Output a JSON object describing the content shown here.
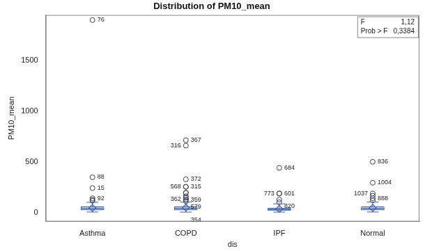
{
  "chart_data": {
    "type": "boxplot",
    "title": "Distribution of PM10_mean",
    "x_label": "dis",
    "y_label": "PM10_mean",
    "categories": [
      "Asthma",
      "COPD",
      "IPF",
      "Normal"
    ],
    "color": "#b4c9e8",
    "marker": "circle",
    "grid": false,
    "legend": false,
    "ylim": [
      -90,
      1950
    ],
    "yticks": [
      0,
      500,
      1000,
      1500
    ],
    "stats": [
      [
        "F",
        "1,12"
      ],
      [
        "Prob > F",
        "0,3384"
      ]
    ],
    "boxes": [
      {
        "min": 4,
        "q1": 20,
        "median": 35,
        "q3": 58,
        "max": 100,
        "mean": 45,
        "outliers": [
          {
            "value": 1900,
            "label": "76"
          },
          {
            "value": 347,
            "label": "88"
          },
          {
            "value": 240,
            "label": "15"
          },
          {
            "value": 140,
            "label": "92"
          },
          {
            "value": 125,
            "label": null
          },
          {
            "value": 115,
            "label": null
          }
        ]
      },
      {
        "min": 3,
        "q1": 20,
        "median": 35,
        "q3": 58,
        "max": 102,
        "mean": 48,
        "outliers": [
          {
            "value": 713,
            "label": "367"
          },
          {
            "value": 660,
            "label": "316"
          },
          {
            "value": 327,
            "label": "372"
          },
          {
            "value": 253,
            "label": "315"
          },
          {
            "value": 253,
            "label": "568"
          },
          {
            "value": 193,
            "label": "359"
          },
          {
            "value": 193,
            "label": "579"
          },
          {
            "value": 127,
            "label": "362"
          },
          {
            "value": 127,
            "label": "354"
          },
          {
            "value": 160,
            "label": null
          },
          {
            "value": 145,
            "label": null
          },
          {
            "value": 110,
            "label": null
          }
        ]
      },
      {
        "min": 3,
        "q1": 15,
        "median": 28,
        "q3": 45,
        "max": 85,
        "mean": 35,
        "outliers": [
          {
            "value": 440,
            "label": "684"
          },
          {
            "value": 187,
            "label": "601"
          },
          {
            "value": 187,
            "label": "773"
          },
          {
            "value": 127,
            "label": "820"
          },
          {
            "value": 100,
            "label": null
          }
        ]
      },
      {
        "min": 4,
        "q1": 20,
        "median": 35,
        "q3": 58,
        "max": 102,
        "mean": 45,
        "outliers": [
          {
            "value": 500,
            "label": "836"
          },
          {
            "value": 293,
            "label": "1004"
          },
          {
            "value": 140,
            "label": "888"
          },
          {
            "value": 187,
            "label": "1037"
          },
          {
            "value": 165,
            "label": null
          },
          {
            "value": 120,
            "label": null
          }
        ]
      }
    ]
  }
}
